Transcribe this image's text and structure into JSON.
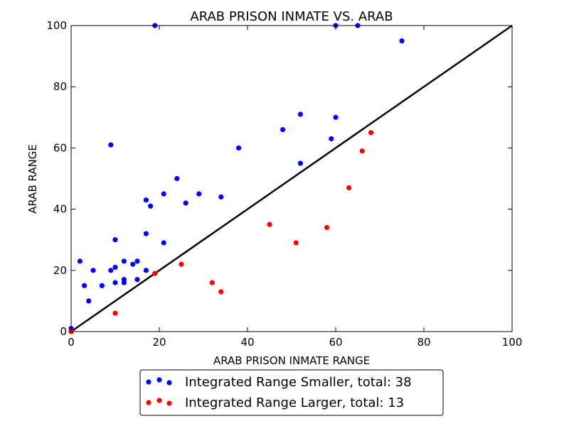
{
  "chart_data": {
    "type": "scatter",
    "title": "ARAB PRISON INMATE VS. ARAB",
    "xlabel": "ARAB PRISON INMATE RANGE",
    "ylabel": "ARAB RANGE",
    "xlim": [
      0,
      100
    ],
    "ylim": [
      0,
      100
    ],
    "xticks": [
      "0",
      "20",
      "40",
      "60",
      "80",
      "100"
    ],
    "yticks": [
      "0",
      "20",
      "40",
      "60",
      "80",
      "100"
    ],
    "grid": false,
    "legend_position": "bottom-center, below plot",
    "reference_line": {
      "x": [
        0,
        100
      ],
      "y": [
        0,
        100
      ],
      "color": "#000000"
    },
    "series": [
      {
        "name": "Integrated Range Smaller, total: 38",
        "color": "#0000ff",
        "points": [
          [
            0,
            1
          ],
          [
            2,
            23
          ],
          [
            3,
            15
          ],
          [
            4,
            10
          ],
          [
            5,
            20
          ],
          [
            7,
            15
          ],
          [
            9,
            61
          ],
          [
            9,
            20
          ],
          [
            10,
            30
          ],
          [
            10,
            21
          ],
          [
            10,
            16
          ],
          [
            12,
            23
          ],
          [
            12,
            17
          ],
          [
            12,
            16
          ],
          [
            14,
            22
          ],
          [
            15,
            23
          ],
          [
            15,
            17
          ],
          [
            17,
            43
          ],
          [
            17,
            32
          ],
          [
            17,
            20
          ],
          [
            18,
            41
          ],
          [
            19,
            100
          ],
          [
            21,
            45
          ],
          [
            21,
            29
          ],
          [
            24,
            50
          ],
          [
            26,
            42
          ],
          [
            29,
            45
          ],
          [
            34,
            44
          ],
          [
            38,
            60
          ],
          [
            48,
            66
          ],
          [
            52,
            71
          ],
          [
            52,
            55
          ],
          [
            59,
            63
          ],
          [
            60,
            70
          ],
          [
            60,
            100
          ],
          [
            65,
            100
          ],
          [
            75,
            95
          ],
          [
            0,
            0
          ]
        ]
      },
      {
        "name": "Integrated Range Larger, total: 13",
        "color": "#ff0000",
        "points": [
          [
            10,
            6
          ],
          [
            19,
            19
          ],
          [
            25,
            22
          ],
          [
            32,
            16
          ],
          [
            34,
            13
          ],
          [
            45,
            35
          ],
          [
            51,
            29
          ],
          [
            58,
            34
          ],
          [
            63,
            47
          ],
          [
            66,
            59
          ],
          [
            68,
            65
          ],
          [
            0,
            0
          ],
          [
            0,
            0
          ]
        ]
      }
    ]
  }
}
